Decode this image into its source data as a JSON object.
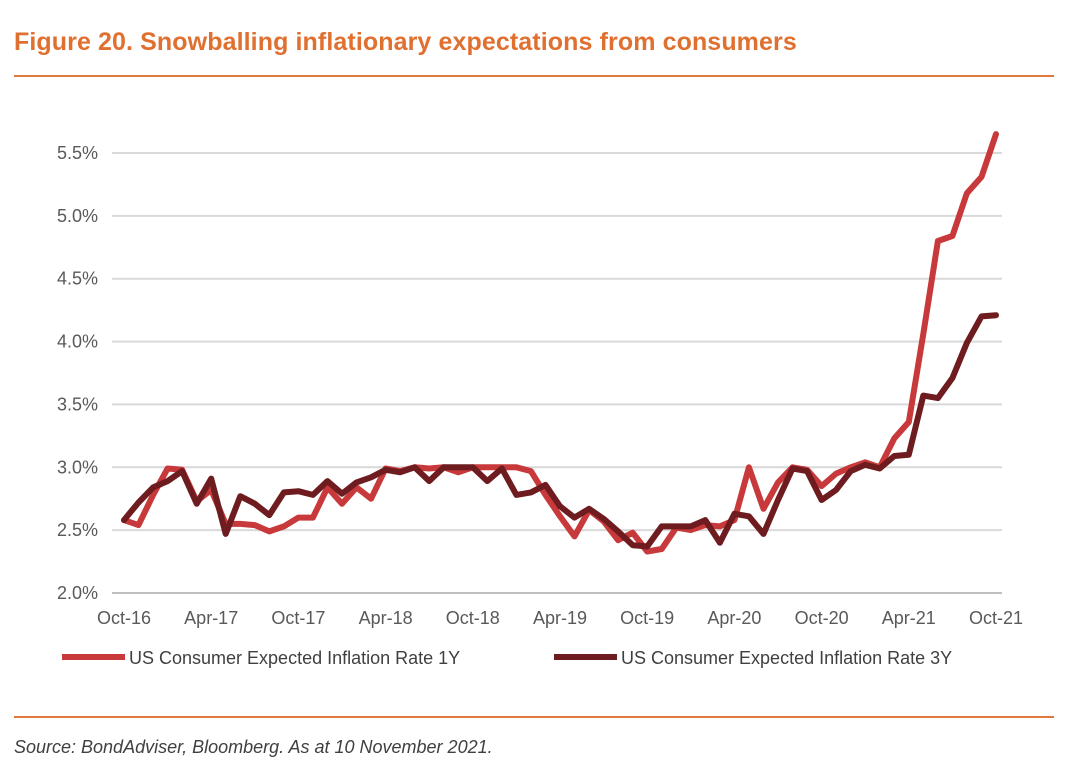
{
  "figure": {
    "title": "Figure 20. Snowballing inflationary expectations from consumers",
    "source": "Source: BondAdviser, Bloomberg. As at 10 November 2021.",
    "accent_color": "#e07030"
  },
  "chart_data": {
    "type": "line",
    "title": "Figure 20. Snowballing inflationary expectations from consumers",
    "xlabel": "",
    "ylabel": "",
    "ylim": [
      2.0,
      5.5
    ],
    "y_ticks": [
      "2.0%",
      "2.5%",
      "3.0%",
      "3.5%",
      "4.0%",
      "4.5%",
      "5.0%",
      "5.5%"
    ],
    "y_tick_values": [
      2.0,
      2.5,
      3.0,
      3.5,
      4.0,
      4.5,
      5.0,
      5.5
    ],
    "x_ticks": [
      "Oct-16",
      "Apr-17",
      "Oct-17",
      "Apr-18",
      "Oct-18",
      "Apr-19",
      "Oct-19",
      "Apr-20",
      "Oct-20",
      "Apr-21",
      "Oct-21"
    ],
    "x_tick_months": [
      0,
      6,
      12,
      18,
      24,
      30,
      36,
      42,
      48,
      54,
      60
    ],
    "x_months": [
      0,
      1,
      2,
      3,
      4,
      5,
      6,
      7,
      8,
      9,
      10,
      11,
      12,
      13,
      14,
      15,
      16,
      17,
      18,
      19,
      20,
      21,
      22,
      23,
      24,
      25,
      26,
      27,
      28,
      29,
      30,
      31,
      32,
      33,
      34,
      35,
      36,
      37,
      38,
      39,
      40,
      41,
      42,
      43,
      44,
      45,
      46,
      47,
      48,
      49,
      50,
      51,
      52,
      53,
      54,
      55,
      56,
      57,
      58,
      59,
      60
    ],
    "grid": true,
    "legend_position": "bottom",
    "series": [
      {
        "name": "US Consumer Expected Inflation Rate 1Y",
        "color": "#c8393b",
        "values": [
          2.58,
          2.54,
          2.78,
          2.99,
          2.98,
          2.73,
          2.82,
          2.55,
          2.55,
          2.54,
          2.49,
          2.53,
          2.6,
          2.6,
          2.84,
          2.71,
          2.84,
          2.75,
          2.99,
          2.97,
          3.0,
          2.99,
          3.0,
          2.96,
          3.0,
          3.0,
          3.0,
          3.0,
          2.97,
          2.78,
          2.61,
          2.45,
          2.66,
          2.57,
          2.42,
          2.48,
          2.33,
          2.35,
          2.52,
          2.5,
          2.54,
          2.53,
          2.58,
          3.0,
          2.67,
          2.88,
          3.0,
          2.98,
          2.85,
          2.95,
          3.0,
          3.04,
          3.0,
          3.23,
          3.36,
          4.06,
          4.8,
          4.84,
          5.18,
          5.31,
          5.65
        ]
      },
      {
        "name": "US Consumer Expected Inflation Rate 3Y",
        "color": "#6e1c1f",
        "values": [
          2.58,
          2.72,
          2.84,
          2.89,
          2.97,
          2.71,
          2.91,
          2.47,
          2.77,
          2.71,
          2.62,
          2.8,
          2.81,
          2.78,
          2.89,
          2.79,
          2.88,
          2.92,
          2.98,
          2.96,
          3.0,
          2.89,
          3.0,
          3.0,
          3.0,
          2.89,
          2.99,
          2.78,
          2.8,
          2.86,
          2.69,
          2.6,
          2.67,
          2.59,
          2.49,
          2.38,
          2.37,
          2.53,
          2.53,
          2.53,
          2.58,
          2.4,
          2.63,
          2.61,
          2.47,
          2.74,
          2.99,
          2.97,
          2.74,
          2.82,
          2.97,
          3.02,
          2.99,
          3.09,
          3.1,
          3.57,
          3.55,
          3.71,
          3.99,
          4.2,
          4.21
        ]
      }
    ]
  }
}
